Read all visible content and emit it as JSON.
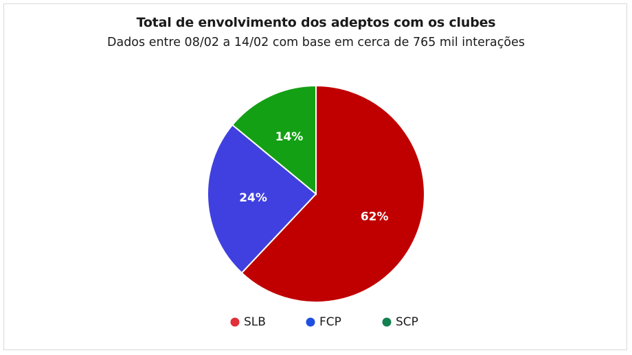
{
  "chart_data": {
    "type": "pie",
    "title": "Total de envolvimento dos adeptos com os clubes",
    "subtitle": "Dados entre 08/02 a 14/02 com base em cerca de 765 mil interações",
    "legend_position": "bottom",
    "slices": [
      {
        "label": "SLB",
        "value": 62,
        "display": "62%",
        "color": "#c00000",
        "legend_color": "#e0303a"
      },
      {
        "label": "FCP",
        "value": 24,
        "display": "24%",
        "color": "#4040e0",
        "legend_color": "#1f4fe0"
      },
      {
        "label": "SCP",
        "value": 14,
        "display": "14%",
        "color": "#14a014",
        "legend_color": "#138050"
      }
    ]
  }
}
